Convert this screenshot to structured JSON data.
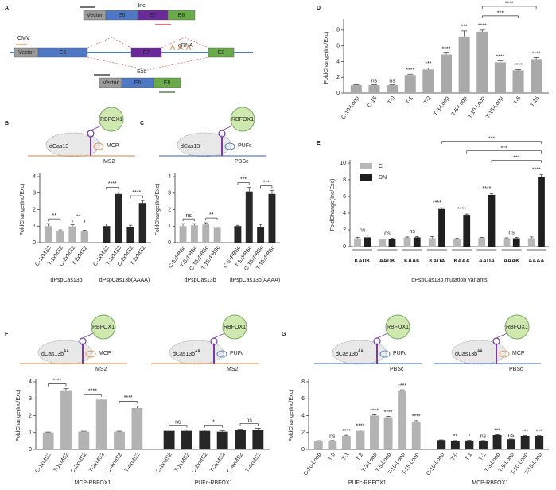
{
  "chart_data": [
    {
      "type": "bar",
      "panel": "D",
      "ylabel": "FoldChange(Inc/Exc)",
      "ylim": [
        0,
        9
      ],
      "yticks": [
        0,
        2,
        4,
        6,
        8
      ],
      "groups": [
        {
          "categories": [
            "C-10-Loop",
            "C-15",
            "T-0",
            "T-1",
            "T-2",
            "T-3-Loop",
            "T-5-Loop",
            "T-10-Loop",
            "T-15-Loop",
            "T-5",
            "T-15"
          ],
          "values": [
            1.0,
            1.0,
            1.0,
            2.3,
            3.0,
            4.9,
            7.2,
            7.8,
            3.9,
            2.9,
            4.3
          ],
          "errors": [
            0.05,
            0.05,
            0.05,
            0.1,
            0.2,
            0.2,
            0.7,
            0.2,
            0.2,
            0.1,
            0.2
          ],
          "color": "#a9a9a9",
          "bar_labels": [
            null,
            "ns",
            "ns",
            "****",
            "***",
            "****",
            "***",
            "****",
            "****",
            "****",
            "****"
          ]
        }
      ],
      "comparisons": [
        {
          "from": "T-10-Loop",
          "to": "T-5",
          "label": "***"
        },
        {
          "from": "T-10-Loop",
          "to": "T-15",
          "label": "****"
        }
      ]
    },
    {
      "type": "grouped_bar",
      "panel": "E",
      "ylabel": "FoldChange(Inc/Exc)",
      "xlabel": "dPspCas13b mutation variants",
      "ylim": [
        0,
        10
      ],
      "yticks": [
        0,
        2,
        4,
        6,
        8,
        10
      ],
      "legend": "upper left",
      "categories": [
        "KADK",
        "AADK",
        "KAAK",
        "KADA",
        "KAAA",
        "AADA",
        "AAAK",
        "AAAA"
      ],
      "series": [
        {
          "name": "C",
          "color": "#b8b8b8",
          "values": [
            1.0,
            0.85,
            1.1,
            1.0,
            0.95,
            1.05,
            1.0,
            1.0
          ],
          "errors": [
            0.1,
            0.05,
            0.05,
            0.2,
            0.05,
            0.05,
            0.05,
            0.15
          ]
        },
        {
          "name": "DN",
          "color": "#1f1f1f",
          "values": [
            1.1,
            0.9,
            1.1,
            4.5,
            3.8,
            6.2,
            1.0,
            8.3
          ],
          "errors": [
            0.25,
            0.1,
            0.1,
            0.15,
            0.1,
            0.15,
            0.1,
            0.3
          ]
        }
      ],
      "pair_labels": [
        "ns",
        "ns",
        "ns",
        "****",
        "****",
        "****",
        "ns",
        "****"
      ],
      "comparisons": [
        {
          "from": "AADA",
          "to": "AAAA",
          "label": "***"
        },
        {
          "from": "KAAA",
          "to": "AAAA",
          "label": "***"
        },
        {
          "from": "KADA",
          "to": "AAAA",
          "label": "***"
        }
      ]
    },
    {
      "type": "bar",
      "panel": "B",
      "ylabel": "FoldChange(Inc/Exc)",
      "ylim": [
        0,
        4
      ],
      "yticks": [
        0,
        1,
        2,
        3,
        4
      ],
      "groups": [
        {
          "label": "dPspCas13b",
          "categories": [
            "C-1xMS2",
            "T-1xMS2",
            "C-2xMS2",
            "T-2xMS2"
          ],
          "values": [
            1.0,
            0.72,
            0.98,
            0.7
          ],
          "errors": [
            0.15,
            0.05,
            0.1,
            0.05
          ],
          "color": "#b3b3b3",
          "bracket_labels": [
            "**",
            "**"
          ]
        },
        {
          "label": "dPspCas13b(AAAA)",
          "categories": [
            "C-1xMS2",
            "T-1xMS2",
            "C-2xMS2",
            "T-2xMS2"
          ],
          "values": [
            1.0,
            2.95,
            0.95,
            2.4
          ],
          "errors": [
            0.12,
            0.12,
            0.1,
            0.15
          ],
          "color": "#262626",
          "bracket_labels": [
            "****",
            "****"
          ]
        }
      ]
    },
    {
      "type": "bar",
      "panel": "C",
      "ylabel": "FoldChange(Inc/Exc)",
      "ylim": [
        0,
        4
      ],
      "yticks": [
        0,
        1,
        2,
        3,
        4
      ],
      "groups": [
        {
          "label": "dPspCas13b",
          "categories": [
            "C-5xPBSc",
            "T-5xPBSc",
            "C-15xPBSc",
            "T-15xPBSc"
          ],
          "values": [
            1.0,
            1.05,
            1.1,
            0.9
          ],
          "errors": [
            0.15,
            0.1,
            0.1,
            0.05
          ],
          "color": "#b3b3b3",
          "bracket_labels": [
            "ns",
            "**"
          ]
        },
        {
          "label": "dPspCas13b(AAAA)",
          "categories": [
            "C-5xPBSc",
            "T-5xPBSc",
            "C-15xPBSc",
            "T-15xPBSc"
          ],
          "values": [
            1.0,
            3.1,
            0.95,
            2.95
          ],
          "errors": [
            0.05,
            0.25,
            0.15,
            0.2
          ],
          "color": "#262626",
          "bracket_labels": [
            "***",
            "***"
          ]
        }
      ]
    },
    {
      "type": "bar",
      "panel": "F",
      "ylabel": "FoldChange(Inc/Exc)",
      "ylim": [
        0,
        4
      ],
      "yticks": [
        0,
        1,
        2,
        3,
        4
      ],
      "groups": [
        {
          "label": "MCP-RBFOX1",
          "categories": [
            "C-1xMS2",
            "T-1xMS2",
            "C-2xMS2",
            "T-2xMS2",
            "C-4xMS2",
            "T-4xMS2"
          ],
          "values": [
            1.0,
            3.5,
            1.05,
            2.95,
            1.05,
            2.45
          ],
          "errors": [
            0.03,
            0.1,
            0.03,
            0.03,
            0.03,
            0.12
          ],
          "color": "#b3b3b3",
          "bracket_labels": [
            "****",
            "****",
            "****"
          ]
        },
        {
          "label": "PUFc-RBFOX1",
          "categories": [
            "C-1xMS2",
            "T-1xMS2",
            "C-2xMS2",
            "T-2xMS2",
            "C-4xMS2",
            "T-4xMS2"
          ],
          "values": [
            1.1,
            1.1,
            1.1,
            1.05,
            1.15,
            1.15
          ],
          "errors": [
            0.05,
            0.05,
            0.05,
            0.05,
            0.05,
            0.1
          ],
          "color": "#262626",
          "bracket_labels": [
            "ns",
            "*",
            "ns"
          ]
        }
      ]
    },
    {
      "type": "bar",
      "panel": "G",
      "ylabel": "FoldChange(Inc/Exc)",
      "ylim": [
        0,
        8
      ],
      "yticks": [
        0,
        2,
        4,
        6,
        8
      ],
      "groups": [
        {
          "label": "PUFc-RBFOX1",
          "categories": [
            "C-10-Loop",
            "T-0",
            "T-1",
            "T-2",
            "T-3-Loop",
            "T-5-Loop",
            "T-10-Loop",
            "T-15-Loop"
          ],
          "values": [
            1.0,
            1.0,
            1.6,
            2.2,
            4.0,
            3.8,
            6.9,
            3.3
          ],
          "errors": [
            0.03,
            0.05,
            0.08,
            0.1,
            0.1,
            0.1,
            0.15,
            0.1
          ],
          "color": "#b3b3b3",
          "bar_labels": [
            null,
            "ns",
            "****",
            "****",
            "****",
            "****",
            "****",
            "****"
          ]
        },
        {
          "label": "MCP-RBFOX1",
          "categories": [
            "C-10-Loop",
            "T-0",
            "T-1",
            "T-2",
            "T-3-Loop",
            "T-5-Loop",
            "T-10-Loop",
            "T-15-Loop"
          ],
          "values": [
            1.1,
            1.0,
            1.05,
            1.0,
            1.7,
            1.2,
            1.6,
            1.6
          ],
          "errors": [
            0.03,
            0.05,
            0.03,
            0.05,
            0.05,
            0.03,
            0.05,
            0.05
          ],
          "color": "#262626",
          "bar_labels": [
            null,
            "**",
            "*",
            "ns",
            "***",
            "ns",
            "***",
            "***"
          ]
        }
      ]
    }
  ],
  "diagrams": {
    "A": {
      "letter": "A",
      "inc": "Inc",
      "exc": "Exc",
      "cmv": "CMV",
      "grna": "gRNA",
      "vector": "Vector",
      "e6": "E6",
      "e7": "E7",
      "e8": "E8"
    },
    "B": [
      {
        "rbfox1": "RBFOX1",
        "cas": "dCas13",
        "adaptor": "MCP",
        "rna": "MS2",
        "adaptor_color": "#e09a5a",
        "rna_color": "#e09a5a"
      }
    ],
    "C": [
      {
        "rbfox1": "RBFOX1",
        "cas": "dCas13",
        "adaptor": "PUFc",
        "rna": "PBSc",
        "adaptor_color": "#5a7fc0",
        "rna_color": "#5a7fc0"
      }
    ],
    "F": [
      {
        "rbfox1": "RBFOX1",
        "cas": "dCas13b",
        "cas_sup": "AA",
        "adaptor": "MCP",
        "rna": "MS2",
        "adaptor_color": "#e09a5a",
        "rna_color": "#e09a5a"
      },
      {
        "rbfox1": "RBFOX1",
        "cas": "dCas13b",
        "cas_sup": "AA",
        "adaptor": "PUFc",
        "rna": "MS2",
        "adaptor_color": "#5a7fc0",
        "rna_color": "#e09a5a"
      }
    ],
    "G": [
      {
        "rbfox1": "RBFOX1",
        "cas": "dCas13b",
        "cas_sup": "AA",
        "adaptor": "PUFc",
        "rna": "PBSc",
        "adaptor_color": "#5a7fc0",
        "rna_color": "#5a7fc0"
      },
      {
        "rbfox1": "RBFOX1",
        "cas": "dCas13b",
        "cas_sup": "AA",
        "adaptor": "MCP",
        "rna": "PBSc",
        "adaptor_color": "#e09a5a",
        "rna_color": "#5a7fc0"
      }
    ]
  }
}
